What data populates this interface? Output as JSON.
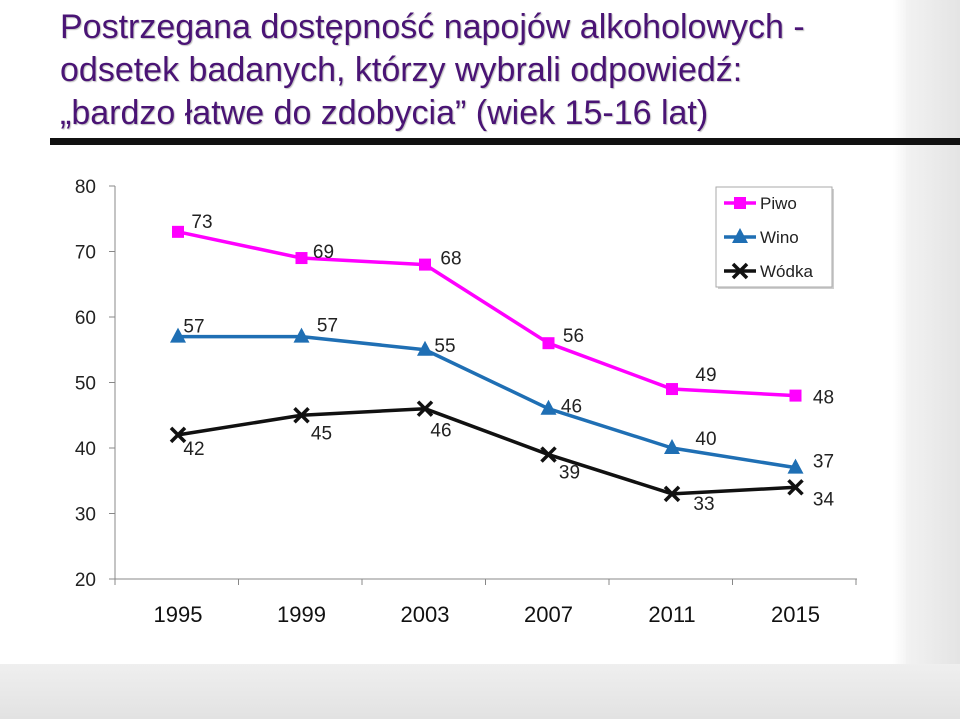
{
  "title": {
    "line1": "Postrzegana dostępność napojów alkoholowych -",
    "line2": "odsetek badanych, którzy wybrali odpowiedź:",
    "line3": "„bardzo łatwe do zdobycia” (wiek 15-16 lat)"
  },
  "colors": {
    "title": "#4a1475",
    "piwo": "#ff00ff",
    "wino": "#1f6fb4",
    "wodka": "#111111"
  },
  "chart_data": {
    "type": "line",
    "x": [
      "1995",
      "1999",
      "2003",
      "2007",
      "2011",
      "2015"
    ],
    "yticks": [
      "20",
      "30",
      "40",
      "50",
      "60",
      "70",
      "80"
    ],
    "ylim": [
      20,
      80
    ],
    "grid": false,
    "legend_position": "top-right",
    "series": [
      {
        "name": "Piwo",
        "values": [
          73,
          69,
          68,
          56,
          49,
          48
        ],
        "labels": [
          "73",
          "69",
          "68",
          "56",
          "49",
          "48"
        ],
        "marker": "square"
      },
      {
        "name": "Wino",
        "values": [
          57,
          57,
          55,
          46,
          40,
          37
        ],
        "labels": [
          "57",
          "57",
          "55",
          "46",
          "40",
          "37"
        ],
        "marker": "triangle"
      },
      {
        "name": "Wódka",
        "values": [
          42,
          45,
          46,
          39,
          33,
          34
        ],
        "labels": [
          "42",
          "45",
          "46",
          "39",
          "33",
          "34"
        ],
        "marker": "x"
      }
    ]
  }
}
